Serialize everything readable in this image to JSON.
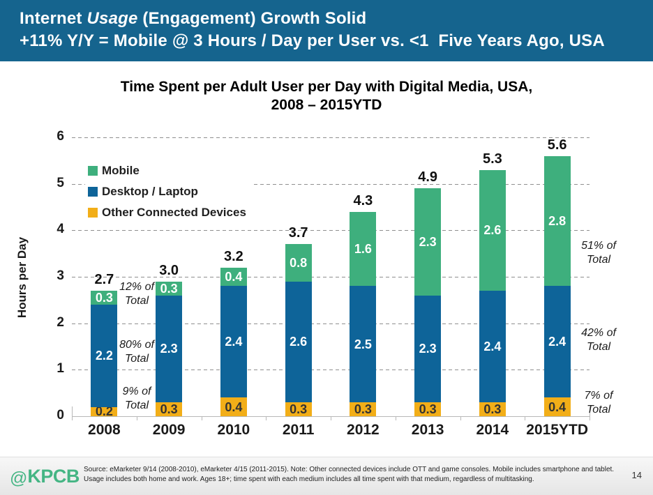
{
  "header": {
    "line1_prefix": "Internet ",
    "line1_italic": "Usage",
    "line1_suffix": " (Engagement) Growth Solid",
    "line2": "+11% Y/Y = Mobile @ 3 Hours / Day per User vs. <1  Five Years Ago, USA",
    "bg_color": "#15648E"
  },
  "chart_data": {
    "type": "bar",
    "stacked": true,
    "title": "Time Spent per Adult User per Day with Digital Media, USA,\n2008 – 2015YTD",
    "ylabel": "Hours per Day",
    "ylim": [
      0,
      6
    ],
    "yticks": [
      0,
      1,
      2,
      3,
      4,
      5,
      6
    ],
    "grid": "horizontal-dashed",
    "legend_position": "top-left-inside",
    "categories": [
      "2008",
      "2009",
      "2010",
      "2011",
      "2012",
      "2013",
      "2014",
      "2015YTD"
    ],
    "series": [
      {
        "name": "Other Connected Devices",
        "color": "#F2AE18",
        "label_color": "#333333",
        "values": [
          0.2,
          0.3,
          0.4,
          0.3,
          0.3,
          0.3,
          0.3,
          0.4
        ]
      },
      {
        "name": "Desktop / Laptop",
        "color": "#0E6499",
        "label_color": "#ffffff",
        "values": [
          2.2,
          2.3,
          2.4,
          2.6,
          2.5,
          2.3,
          2.4,
          2.4
        ]
      },
      {
        "name": "Mobile",
        "color": "#3EAF7D",
        "label_color": "#ffffff",
        "values": [
          0.3,
          0.3,
          0.4,
          0.8,
          1.6,
          2.3,
          2.6,
          2.8
        ]
      }
    ],
    "totals": [
      "2.7",
      "3.0",
      "3.2",
      "3.7",
      "4.3",
      "4.9",
      "5.3",
      "5.6"
    ],
    "annotations_left": [
      "12% of\nTotal",
      "80% of\nTotal",
      "9% of\nTotal"
    ],
    "annotations_right": [
      "51% of\nTotal",
      "42% of\nTotal",
      "7% of\nTotal"
    ]
  },
  "legend": {
    "items": [
      {
        "label": "Mobile",
        "color": "#3EAF7D"
      },
      {
        "label": "Desktop / Laptop",
        "color": "#0E6499"
      },
      {
        "label": "Other Connected Devices",
        "color": "#F2AE18"
      }
    ]
  },
  "footer": {
    "logo_at": "@",
    "logo_text": "KPCB",
    "source_text": "Source: eMarketer 9/14 (2008-2010), eMarketer 4/15 (2011-2015). Note: Other connected devices include OTT and game consoles. Mobile includes smartphone and tablet. Usage includes both home and work. Ages 18+; time spent with each medium includes all time spent with that medium, regardless of multitasking.",
    "page_number": "14"
  }
}
